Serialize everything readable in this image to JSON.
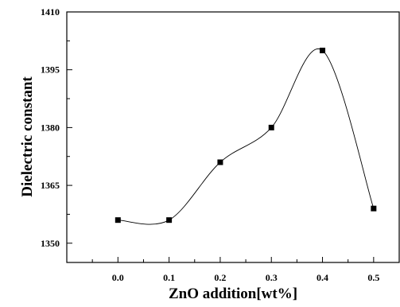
{
  "chart_data": {
    "type": "line",
    "title": "",
    "xlabel": "ZnO addition[wt%]",
    "ylabel": "Dielectric constant",
    "x": [
      0.0,
      0.1,
      0.2,
      0.3,
      0.4,
      0.5
    ],
    "series": [
      {
        "values": [
          1356,
          1356,
          1371,
          1380,
          1400,
          1359
        ]
      }
    ],
    "xlim": [
      -0.1,
      0.55
    ],
    "ylim": [
      1345,
      1410
    ],
    "x_ticks": [
      "0.0",
      "0.1",
      "0.2",
      "0.3",
      "0.4",
      "0.5"
    ],
    "y_ticks": [
      "1350",
      "1365",
      "1380",
      "1395",
      "1410"
    ],
    "curve": "smooth spline",
    "marker": "square",
    "grid": false,
    "legend": "none"
  }
}
